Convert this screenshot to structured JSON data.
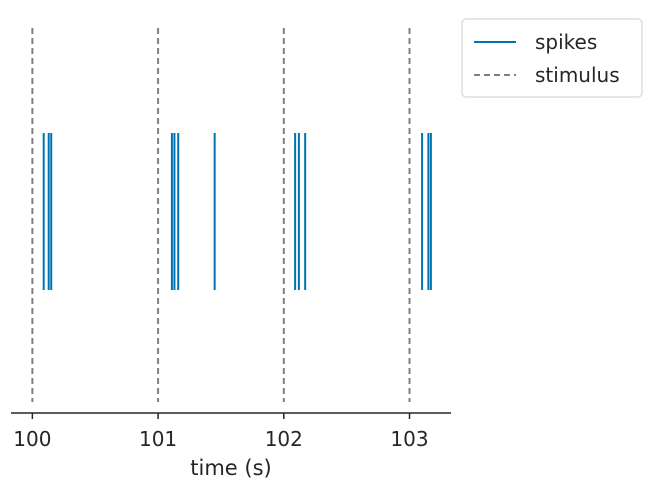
{
  "chart_data": {
    "type": "event-raster",
    "xlabel": "time (s)",
    "xlim": [
      99.83,
      103.33
    ],
    "xticks": [
      100,
      101,
      102,
      103
    ],
    "xtick_labels": [
      "100",
      "101",
      "102",
      "103"
    ],
    "grid": false,
    "y_axis_visible": false,
    "legend_position": "outside-top-right",
    "series": [
      {
        "name": "spikes",
        "kind": "spike-raster",
        "color": "#0072B2",
        "events": [
          100.09,
          100.13,
          100.15,
          101.11,
          101.13,
          101.16,
          101.45,
          102.09,
          102.12,
          102.17,
          103.1,
          103.15,
          103.17
        ]
      },
      {
        "name": "stimulus",
        "kind": "dashed-vertical-lines",
        "color": "#7f7f7f",
        "events": [
          100,
          101,
          102,
          103
        ]
      }
    ]
  }
}
